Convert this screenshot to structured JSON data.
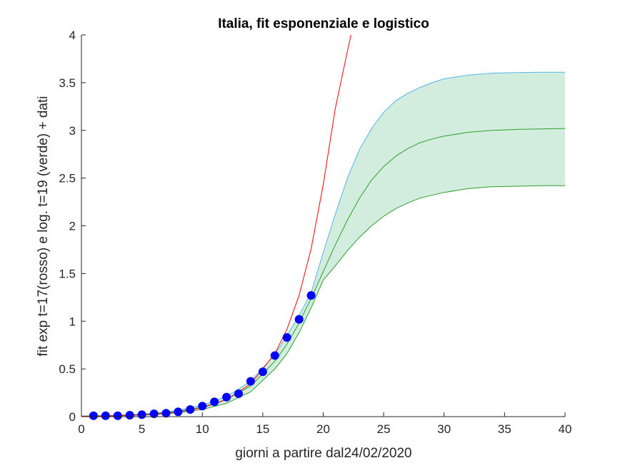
{
  "chart_data": {
    "type": "line",
    "title": "Italia, fit esponenziale e logistico",
    "xlabel": "giorni a partire dal24/02/2020",
    "ylabel": "fit exp t=17(rosso) e log. t=19 (verde) + dati",
    "xlim": [
      0,
      40
    ],
    "ylim": [
      0,
      4
    ],
    "xticks": [
      0,
      5,
      10,
      15,
      20,
      25,
      30,
      35,
      40
    ],
    "yticks": [
      0,
      0.5,
      1,
      1.5,
      2,
      2.5,
      3,
      3.5,
      4
    ],
    "ytick_labels": [
      "0",
      "0.5",
      "1",
      "1.5",
      "2",
      "2.5",
      "3",
      "3.5",
      "4"
    ],
    "grid": false,
    "legend": "none",
    "data_points": {
      "color": "#0000ff",
      "x": [
        1,
        2,
        3,
        4,
        5,
        6,
        7,
        8,
        9,
        10,
        11,
        12,
        13,
        14,
        15,
        16,
        17,
        18,
        19
      ],
      "y": [
        0.01,
        0.01,
        0.01,
        0.015,
        0.02,
        0.03,
        0.035,
        0.05,
        0.075,
        0.11,
        0.155,
        0.205,
        0.24,
        0.37,
        0.47,
        0.64,
        0.83,
        1.02,
        1.27
      ]
    },
    "exp_fit": {
      "color": "#ff0000",
      "x": [
        0,
        2,
        4,
        6,
        8,
        10,
        12,
        14,
        16,
        17,
        18,
        19,
        20,
        21,
        22,
        22.3
      ],
      "y": [
        0.004,
        0.007,
        0.013,
        0.025,
        0.048,
        0.092,
        0.178,
        0.342,
        0.66,
        0.915,
        1.27,
        1.76,
        2.43,
        3.23,
        3.83,
        4.0
      ]
    },
    "logistic_fit": {
      "color": "#2ca02c",
      "x": [
        0,
        2,
        4,
        6,
        8,
        10,
        12,
        14,
        16,
        17,
        18,
        19,
        20,
        21,
        22,
        23,
        24,
        25,
        26,
        27,
        28,
        29,
        30,
        32,
        34,
        36,
        38,
        40
      ],
      "y": [
        0.005,
        0.009,
        0.017,
        0.031,
        0.056,
        0.1,
        0.18,
        0.32,
        0.58,
        0.76,
        0.98,
        1.24,
        1.52,
        1.8,
        2.06,
        2.29,
        2.48,
        2.62,
        2.73,
        2.81,
        2.87,
        2.91,
        2.94,
        2.98,
        3.0,
        3.01,
        3.015,
        3.02
      ]
    },
    "confidence_band": {
      "fill": "#d2ecdd",
      "upper_color": "#56b4e9",
      "lower_color": "#2ca02c",
      "x": [
        0,
        2,
        4,
        6,
        8,
        10,
        12,
        14,
        16,
        17,
        18,
        19,
        20,
        21,
        22,
        23,
        24,
        25,
        26,
        27,
        28,
        29,
        30,
        32,
        34,
        36,
        38,
        40
      ],
      "upper": [
        0.006,
        0.011,
        0.02,
        0.036,
        0.065,
        0.12,
        0.21,
        0.37,
        0.65,
        0.85,
        1.06,
        1.3,
        1.72,
        2.12,
        2.5,
        2.8,
        3.02,
        3.19,
        3.31,
        3.39,
        3.45,
        3.5,
        3.54,
        3.58,
        3.6,
        3.605,
        3.61,
        3.61
      ],
      "lower": [
        0.003,
        0.006,
        0.012,
        0.022,
        0.04,
        0.075,
        0.14,
        0.26,
        0.5,
        0.66,
        0.88,
        1.14,
        1.43,
        1.58,
        1.74,
        1.88,
        2.0,
        2.1,
        2.18,
        2.24,
        2.29,
        2.32,
        2.35,
        2.39,
        2.41,
        2.415,
        2.42,
        2.42
      ]
    }
  }
}
